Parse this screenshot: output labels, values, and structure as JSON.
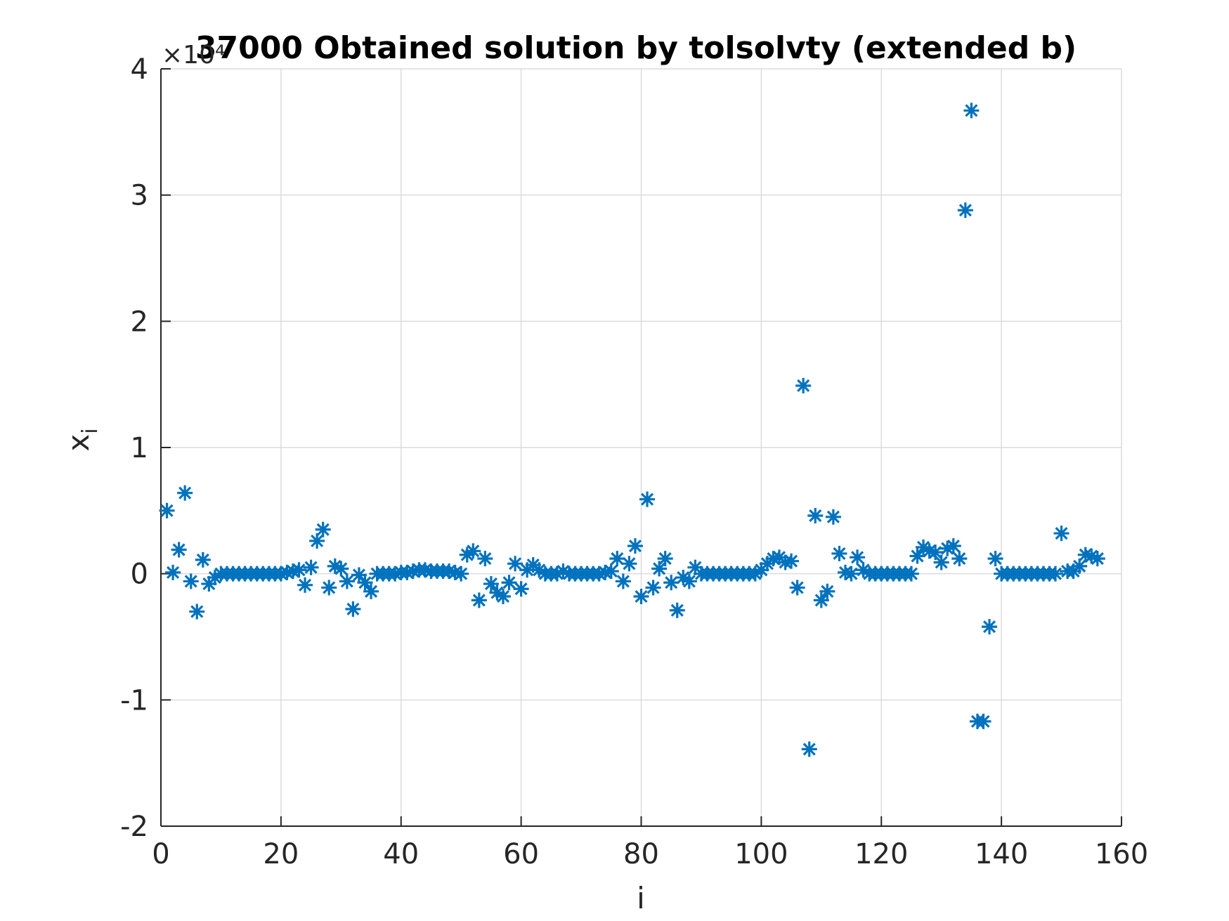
{
  "chart_data": {
    "type": "scatter",
    "title": "37000 Obtained solution by tolsolvty (extended b)",
    "xlabel": "i",
    "ylabel": "x_i",
    "y_exponent_label": "×10⁴",
    "xlim": [
      0,
      160
    ],
    "ylim": [
      -2,
      4
    ],
    "x_ticks": [
      0,
      20,
      40,
      60,
      80,
      100,
      120,
      140,
      160
    ],
    "y_ticks": [
      -2,
      -1,
      0,
      1,
      2,
      3,
      4
    ],
    "x_tick_labels": [
      "0",
      "20",
      "40",
      "60",
      "80",
      "100",
      "120",
      "140",
      "160"
    ],
    "y_tick_labels": [
      "-2",
      "-1",
      "0",
      "1",
      "2",
      "3",
      "4"
    ],
    "grid": true,
    "marker": "asterisk",
    "color": "#0072BD",
    "series": [
      {
        "x": [
          1,
          2,
          3,
          4,
          5,
          6,
          7,
          8,
          9,
          10,
          11,
          12,
          13,
          14,
          15,
          16,
          17,
          18,
          19,
          20,
          21,
          22,
          23,
          24,
          25,
          26,
          27,
          28,
          29,
          30,
          31,
          32,
          33,
          34,
          35,
          36,
          37,
          38,
          39,
          40,
          41,
          42,
          43,
          44,
          45,
          46,
          47,
          48,
          49,
          50,
          51,
          52,
          53,
          54,
          55,
          56,
          57,
          58,
          59,
          60,
          61,
          62,
          63,
          64,
          65,
          66,
          67,
          68,
          69,
          70,
          71,
          72,
          73,
          74,
          75,
          76,
          77,
          78,
          79,
          80,
          81,
          82,
          83,
          84,
          85,
          86,
          87,
          88,
          89,
          90,
          91,
          92,
          93,
          94,
          95,
          96,
          97,
          98,
          99,
          100,
          101,
          102,
          103,
          104,
          105,
          106,
          107,
          108,
          109,
          110,
          111,
          112,
          113,
          114,
          115,
          116,
          117,
          118,
          119,
          120,
          121,
          122,
          123,
          124,
          125,
          126,
          127,
          128,
          129,
          130,
          131,
          132,
          133,
          134,
          135,
          136,
          137,
          138,
          139,
          140,
          141,
          142,
          143,
          144,
          145,
          146,
          147,
          148,
          149,
          150,
          151,
          152,
          153,
          154,
          155,
          156
        ],
        "y": [
          0.5,
          0.01,
          0.19,
          0.64,
          -0.06,
          -0.3,
          0.11,
          -0.08,
          -0.03,
          0.0,
          0.0,
          0.0,
          0.0,
          0.0,
          0.0,
          0.0,
          0.0,
          0.0,
          0.0,
          0.0,
          0.01,
          0.02,
          0.03,
          -0.09,
          0.05,
          0.26,
          0.35,
          -0.11,
          0.06,
          0.04,
          -0.06,
          -0.28,
          -0.01,
          -0.07,
          -0.14,
          0.0,
          0.0,
          0.0,
          0.0,
          0.01,
          0.01,
          0.02,
          0.03,
          0.03,
          0.02,
          0.02,
          0.02,
          0.02,
          0.01,
          0.0,
          0.15,
          0.18,
          -0.21,
          0.12,
          -0.08,
          -0.15,
          -0.18,
          -0.07,
          0.08,
          -0.12,
          0.03,
          0.07,
          0.03,
          0.0,
          0.0,
          0.0,
          0.02,
          0.0,
          0.0,
          0.0,
          0.0,
          0.0,
          0.0,
          0.01,
          0.02,
          0.12,
          -0.06,
          0.08,
          0.22,
          -0.18,
          0.59,
          -0.11,
          0.04,
          0.12,
          -0.07,
          -0.29,
          -0.03,
          -0.06,
          0.05,
          0.0,
          0.0,
          0.0,
          0.0,
          0.0,
          0.0,
          0.0,
          0.0,
          0.0,
          0.0,
          0.03,
          0.08,
          0.12,
          0.13,
          0.09,
          0.1,
          -0.11,
          1.49,
          -1.39,
          0.46,
          -0.21,
          -0.14,
          0.45,
          0.16,
          0.01,
          0.0,
          0.13,
          0.03,
          0.0,
          0.0,
          0.0,
          0.0,
          0.0,
          0.0,
          0.0,
          0.0,
          0.14,
          0.21,
          0.18,
          0.17,
          0.09,
          0.2,
          0.22,
          0.12,
          2.88,
          3.67,
          -1.17,
          -1.17,
          -0.42,
          0.12,
          0.0,
          0.0,
          0.0,
          0.0,
          0.0,
          0.0,
          0.0,
          0.0,
          0.0,
          0.0,
          0.32,
          0.02,
          0.02,
          0.06,
          0.15,
          0.14,
          0.12
        ]
      }
    ]
  }
}
